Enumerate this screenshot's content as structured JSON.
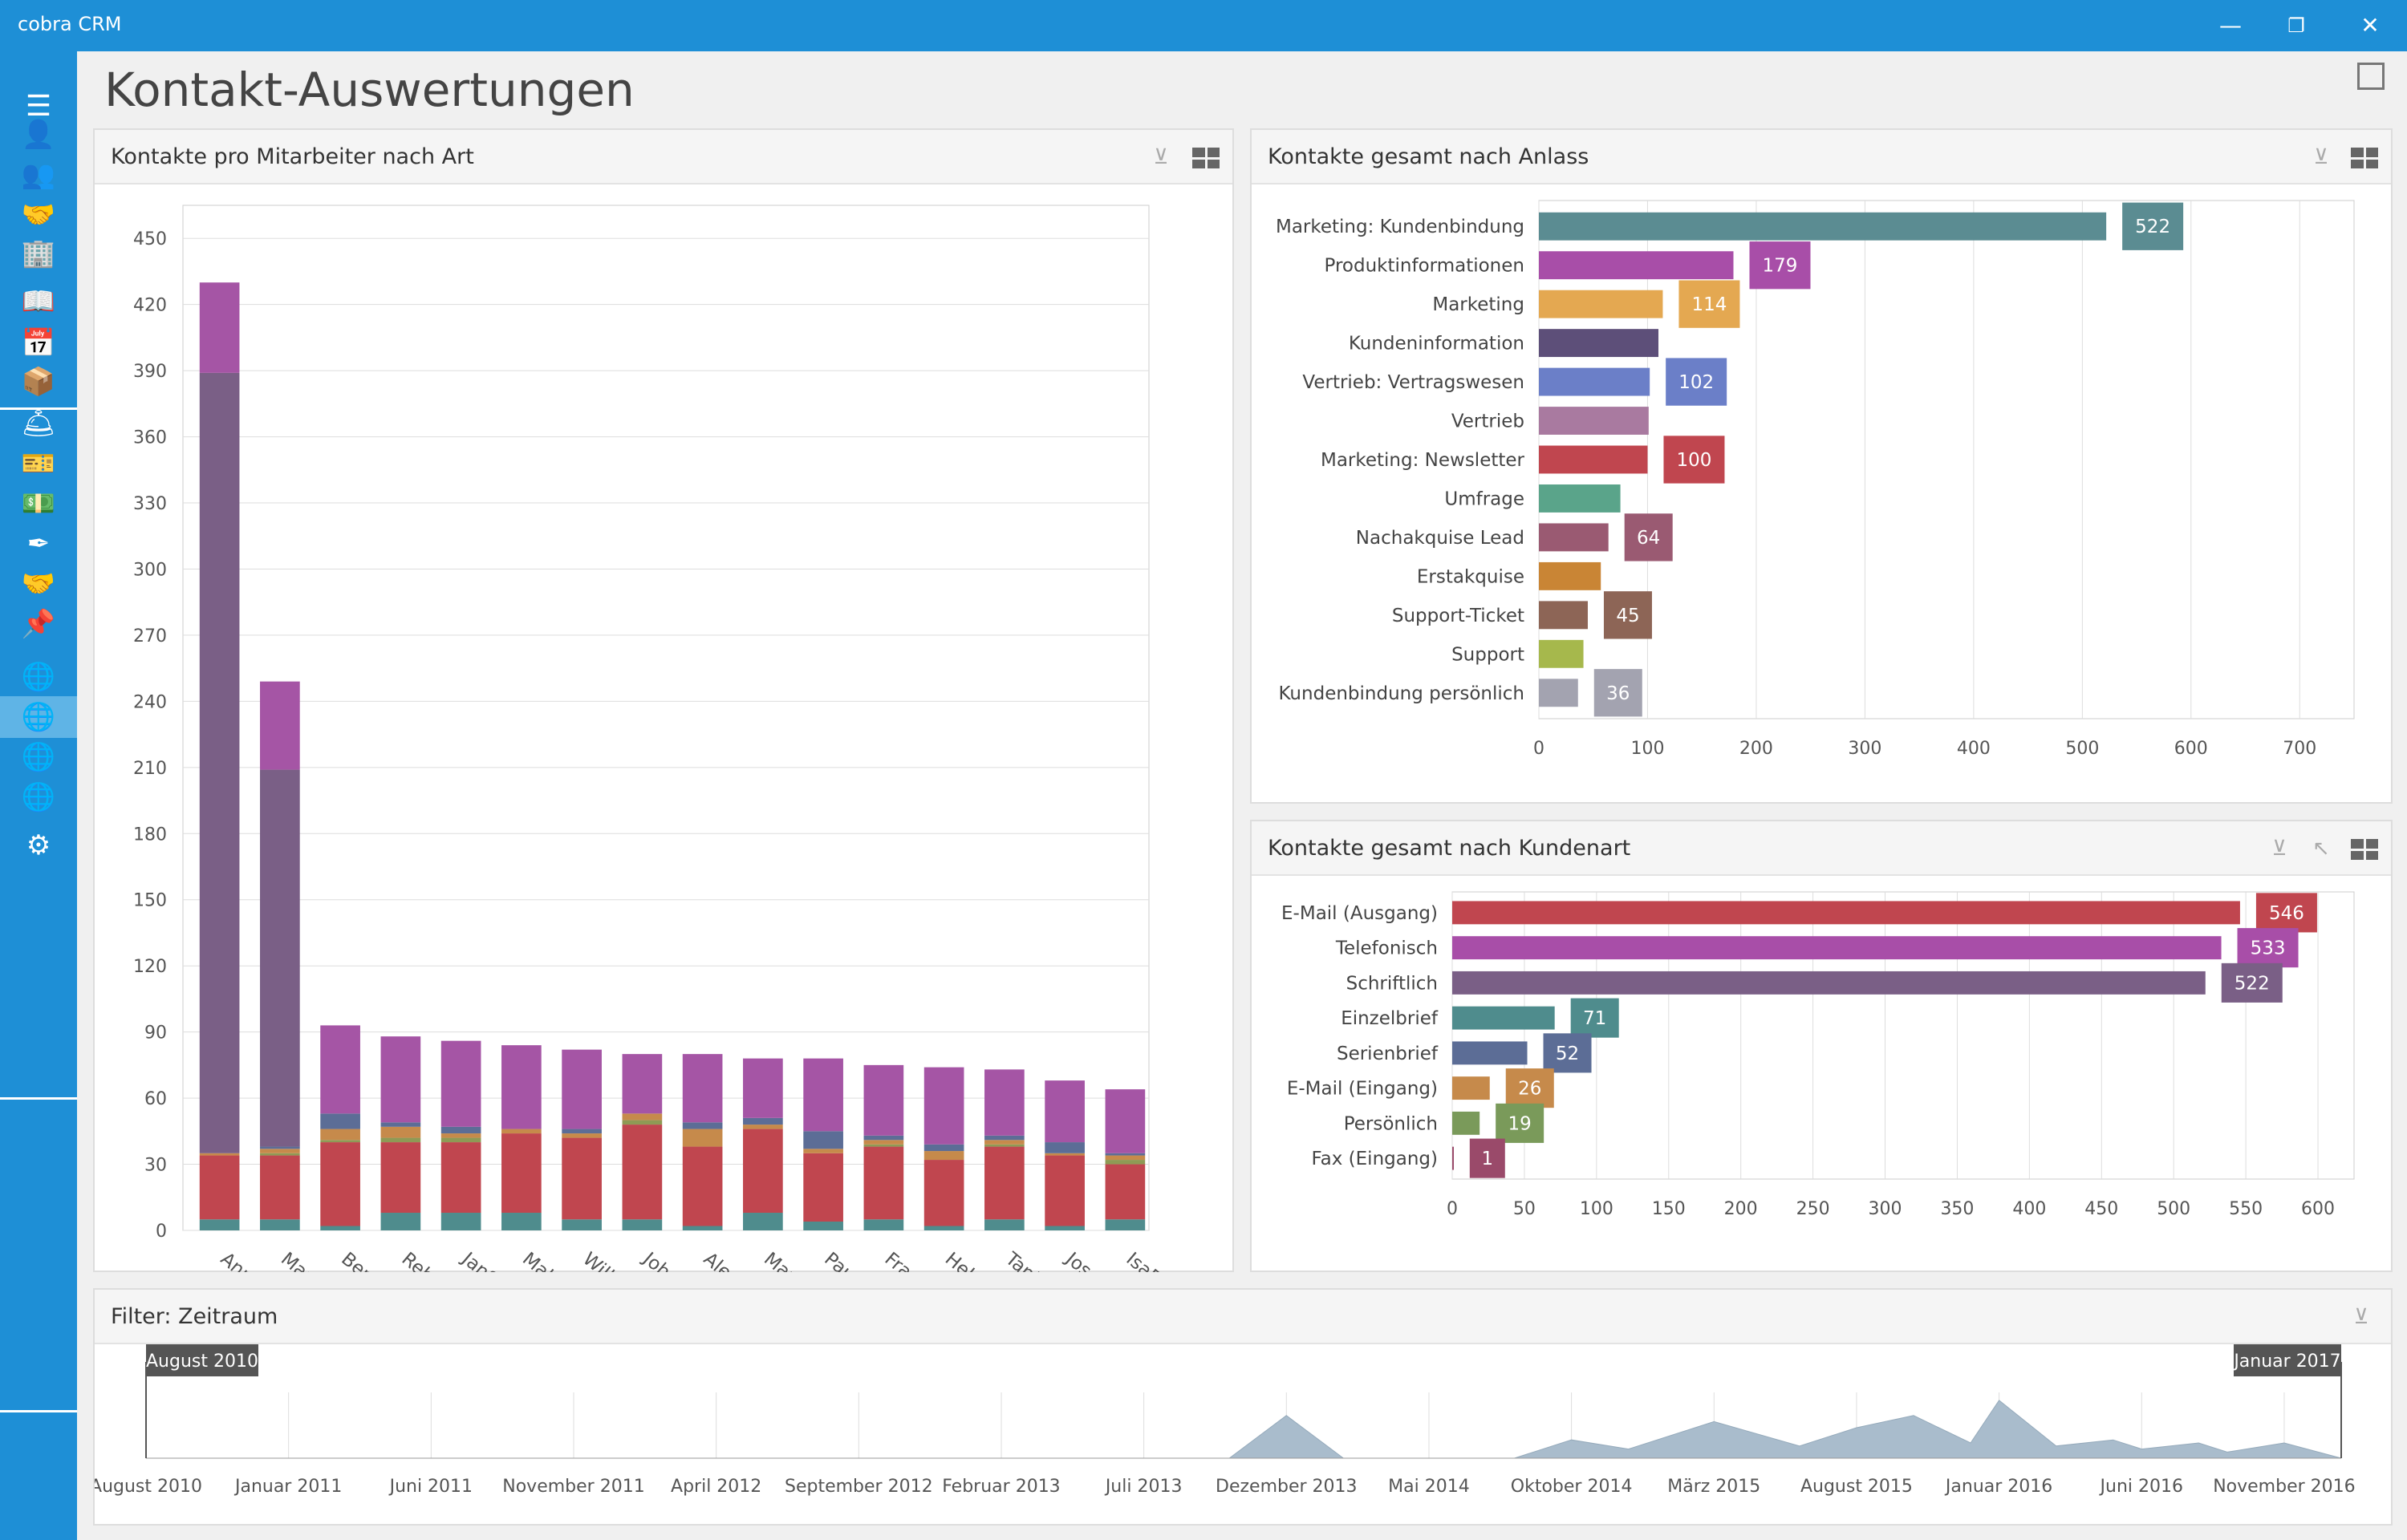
{
  "app": {
    "title": "cobra CRM",
    "minimize": "—",
    "restore": "❐",
    "close": "✕"
  },
  "page": {
    "title": "Kontakt-Auswertungen"
  },
  "colors": {
    "accent": "#1e8fd6",
    "sidebar_active": "#5fb4e6"
  },
  "sidebar": {
    "items": [
      {
        "icon": "contact-card-icon",
        "glyph": "👤"
      },
      {
        "icon": "contacts-group-icon",
        "glyph": "👥"
      },
      {
        "icon": "handshake-icon",
        "glyph": "🤝"
      },
      {
        "icon": "buildings-icon",
        "glyph": "🏢"
      },
      {
        "icon": "book-icon",
        "glyph": "📖"
      },
      {
        "icon": "calendar-icon",
        "glyph": "📅"
      },
      {
        "icon": "boxes-icon",
        "glyph": "📦"
      },
      {
        "icon": "service-bell-icon",
        "glyph": "🛎"
      },
      {
        "icon": "ticket-icon",
        "glyph": "🎫"
      },
      {
        "icon": "money-icon",
        "glyph": "💵"
      },
      {
        "icon": "pen-icon",
        "glyph": "✒"
      },
      {
        "icon": "handshake-2-icon",
        "glyph": "🤝"
      },
      {
        "icon": "pin-icon",
        "glyph": "📌"
      },
      {
        "icon": "globe-icon",
        "glyph": "🌐"
      },
      {
        "icon": "globe-active-icon",
        "glyph": "🌐"
      },
      {
        "icon": "globe-2-icon",
        "glyph": "🌐"
      },
      {
        "icon": "globe-3-icon",
        "glyph": "🌐"
      },
      {
        "icon": "settings-gear-icon",
        "glyph": "⚙"
      }
    ]
  },
  "panels": {
    "employee": {
      "title": "Kontakte pro Mitarbeiter nach Art"
    },
    "anlass": {
      "title": "Kontakte gesamt nach Anlass"
    },
    "kundenart": {
      "title": "Kontakte gesamt nach Kundenart"
    },
    "filter": {
      "title": "Filter: Zeitraum"
    }
  },
  "chart_data": [
    {
      "type": "bar",
      "stacked": true,
      "title": "Kontakte pro Mitarbeiter nach Art",
      "categories": [
        "AnnaBerger",
        "MaryWollstonecraft",
        "BerndSchlegel",
        "RebeccaHorch",
        "JanSchneider",
        "MalekBinAbdulAziz",
        "WilliamGodwin",
        "JohannRenner",
        "AlexisMayersborg",
        "MaximilianFink",
        "PaulHerberger",
        "FranziskaFriedrich",
        "HelgaVogel",
        "TanjaSchlüter",
        "JosefKöppl",
        "IsaFischer"
      ],
      "series": [
        {
          "color": "#4f8c8d",
          "values": [
            5,
            5,
            2,
            8,
            8,
            8,
            5,
            5,
            2,
            8,
            4,
            5,
            2,
            5,
            2,
            5
          ]
        },
        {
          "color": "#c0464f",
          "values": [
            29,
            29,
            38,
            32,
            32,
            36,
            37,
            43,
            36,
            38,
            31,
            33,
            30,
            33,
            32,
            25
          ]
        },
        {
          "color": "#8e9a55",
          "values": [
            0,
            1,
            1,
            2,
            2,
            0,
            0,
            2,
            0,
            0,
            0,
            1,
            0,
            1,
            0,
            2
          ]
        },
        {
          "color": "#c68a4b",
          "values": [
            1,
            2,
            5,
            5,
            2,
            2,
            2,
            3,
            8,
            2,
            2,
            2,
            4,
            2,
            1,
            2
          ]
        },
        {
          "color": "#5c6d96",
          "values": [
            0,
            1,
            7,
            2,
            3,
            0,
            2,
            0,
            3,
            3,
            8,
            2,
            3,
            2,
            5,
            1
          ]
        },
        {
          "color": "#7a5f86",
          "values": [
            354,
            171,
            0,
            0,
            0,
            0,
            0,
            0,
            0,
            0,
            0,
            0,
            0,
            0,
            0,
            0
          ]
        },
        {
          "color": "#a555a5",
          "values": [
            41,
            40,
            40,
            39,
            39,
            38,
            36,
            27,
            31,
            27,
            33,
            32,
            35,
            30,
            28,
            29
          ]
        }
      ],
      "yticks": [
        0,
        30,
        60,
        90,
        120,
        150,
        180,
        210,
        240,
        270,
        300,
        330,
        360,
        390,
        420,
        450
      ],
      "ylim": [
        0,
        465
      ]
    },
    {
      "type": "bar",
      "orientation": "horizontal",
      "title": "Kontakte gesamt nach Anlass",
      "categories": [
        "Marketing: Kundenbindung",
        "Produktinformationen",
        "Marketing",
        "Kundeninformation",
        "Vertrieb: Vertragswesen",
        "Vertrieb",
        "Marketing: Newsletter",
        "Umfrage",
        "Nachakquise Lead",
        "Erstakquise",
        "Support-Ticket",
        "Support",
        "Kundenbindung persönlich"
      ],
      "values": [
        522,
        179,
        114,
        110,
        102,
        101,
        100,
        75,
        64,
        57,
        45,
        41,
        36
      ],
      "labels": [
        "522",
        "179",
        "114",
        "",
        "102",
        "",
        "100",
        "",
        "64",
        "",
        "45",
        "",
        "36"
      ],
      "colors": [
        "#5b8c92",
        "#a84ea8",
        "#e4a851",
        "#5d4f79",
        "#6b7fc8",
        "#a97aa0",
        "#c0464f",
        "#5aa48a",
        "#9a5a72",
        "#c98535",
        "#8d6556",
        "#a6b84c",
        "#a3a3b0"
      ],
      "xticks": [
        0,
        100,
        200,
        300,
        400,
        500,
        600,
        700
      ],
      "xlim": [
        0,
        750
      ]
    },
    {
      "type": "bar",
      "orientation": "horizontal",
      "title": "Kontakte gesamt nach Kundenart",
      "categories": [
        "E-Mail (Ausgang)",
        "Telefonisch",
        "Schriftlich",
        "Einzelbrief",
        "Serienbrief",
        "E-Mail (Eingang)",
        "Persönlich",
        "Fax (Eingang)"
      ],
      "values": [
        546,
        533,
        522,
        71,
        52,
        26,
        19,
        1
      ],
      "labels": [
        "546",
        "533",
        "522",
        "71",
        "52",
        "26",
        "19",
        "1"
      ],
      "colors": [
        "#c0464f",
        "#a84ea8",
        "#7a5f86",
        "#4f8c8d",
        "#5c6d96",
        "#c68a4b",
        "#7a9a5a",
        "#9a4a6a"
      ],
      "xticks": [
        0,
        50,
        100,
        150,
        200,
        250,
        300,
        350,
        400,
        450,
        500,
        550,
        600
      ],
      "xlim": [
        0,
        625
      ]
    },
    {
      "type": "area",
      "title": "Filter: Zeitraum",
      "x": [
        "2010-08",
        "2010-10",
        "2010-12",
        "2011-01",
        "2011-03",
        "2011-06",
        "2011-09",
        "2011-11",
        "2012-02",
        "2012-04",
        "2012-07",
        "2012-09",
        "2012-12",
        "2013-02",
        "2013-05",
        "2013-07",
        "2013-10",
        "2013-12",
        "2014-02",
        "2014-05",
        "2014-08",
        "2014-10",
        "2014-12",
        "2015-03",
        "2015-06",
        "2015-08",
        "2015-10",
        "2015-12",
        "2016-01",
        "2016-03",
        "2016-05",
        "2016-06",
        "2016-08",
        "2016-09",
        "2016-11",
        "2017-01"
      ],
      "values": [
        0,
        0,
        0,
        0,
        0,
        0,
        0,
        0,
        0,
        0,
        0,
        0,
        0,
        0,
        0,
        0,
        0,
        28,
        0,
        0,
        0,
        12,
        6,
        24,
        8,
        20,
        28,
        10,
        38,
        8,
        12,
        6,
        10,
        4,
        10,
        0
      ],
      "tick_labels": [
        "August 2010",
        "Januar 2011",
        "Juni 2011",
        "November 2011",
        "April 2012",
        "September 2012",
        "Februar 2013",
        "Juli 2013",
        "Dezember 2013",
        "Mai 2014",
        "Oktober 2014",
        "März 2015",
        "August 2015",
        "Januar 2016",
        "Juni 2016",
        "November 2016"
      ],
      "range_start": "August 2010",
      "range_end": "Januar 2017"
    }
  ]
}
